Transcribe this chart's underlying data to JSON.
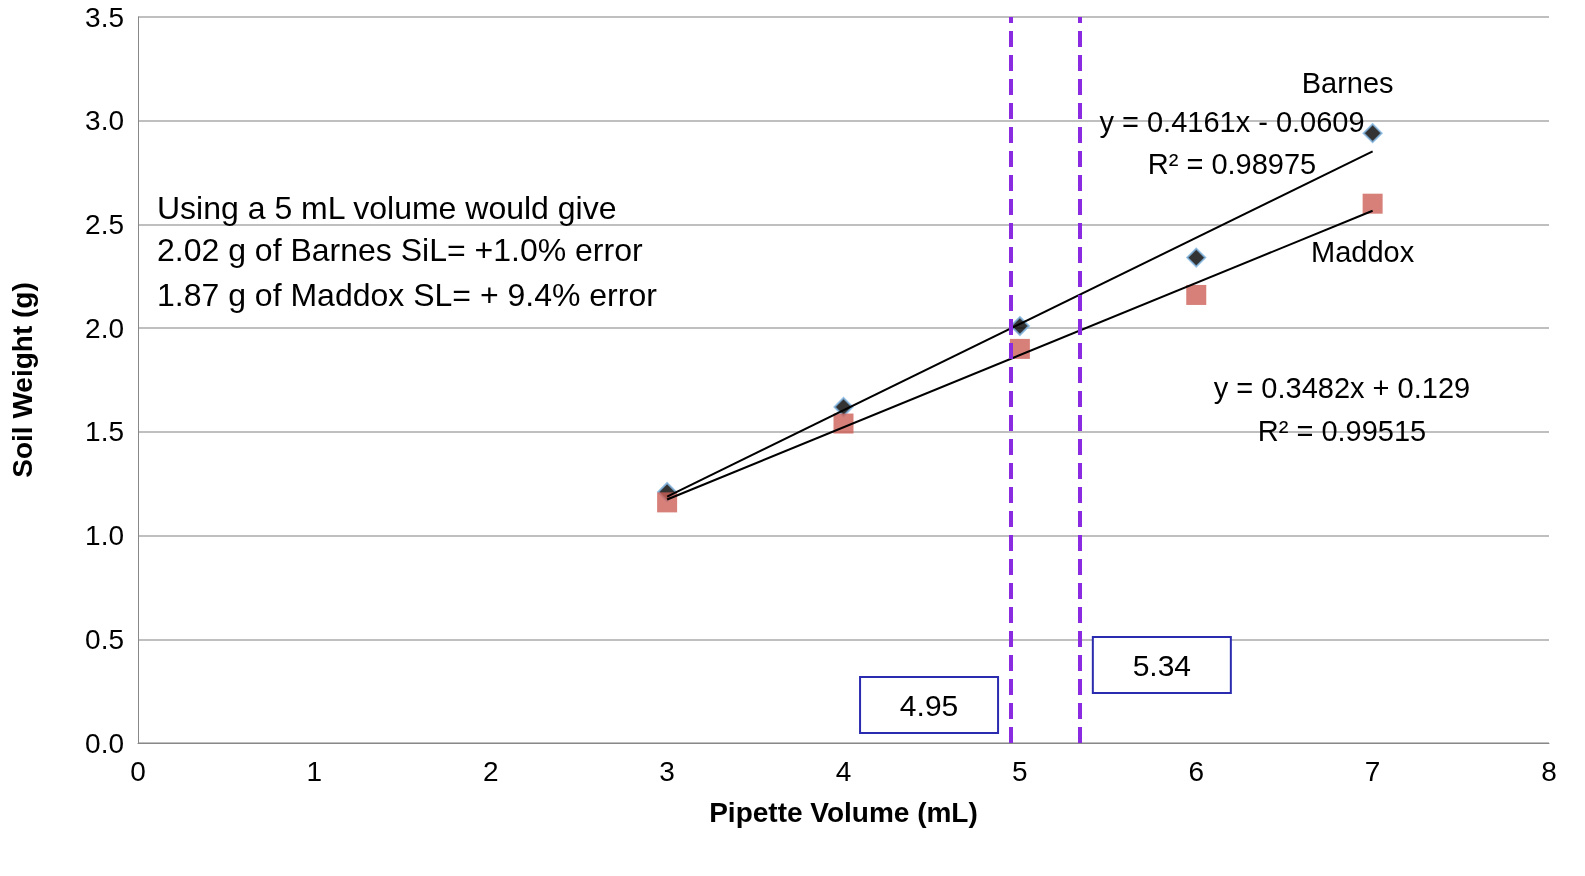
{
  "chart_data": {
    "type": "scatter",
    "xlabel": "Pipette Volume (mL)",
    "ylabel": "Soil Weight (g)",
    "xlim": [
      0,
      8
    ],
    "xticks": [
      0,
      1,
      2,
      3,
      4,
      5,
      6,
      7,
      8
    ],
    "ylim": [
      0,
      3.5
    ],
    "yticks": [
      {
        "value": 0,
        "label": "0.0"
      },
      {
        "value": 0.5,
        "label": "0.5"
      },
      {
        "value": 1,
        "label": "1.0"
      },
      {
        "value": 1.5,
        "label": "1.5"
      },
      {
        "value": 2,
        "label": "2.0"
      },
      {
        "value": 2.5,
        "label": "2.5"
      },
      {
        "value": 3,
        "label": "3.0"
      },
      {
        "value": 3.5,
        "label": "3.5"
      }
    ],
    "grid": "y",
    "legend": false,
    "series": [
      {
        "name": "Barnes",
        "marker": "diamond",
        "color": "#000000",
        "x": [
          3,
          4,
          5,
          6,
          7
        ],
        "values": [
          1.21,
          1.62,
          2.01,
          2.34,
          2.94
        ]
      },
      {
        "name": "Maddox",
        "marker": "square",
        "color": "#cd6059",
        "x": [
          3,
          4,
          5,
          6,
          7
        ],
        "values": [
          1.16,
          1.54,
          1.9,
          2.16,
          2.6
        ]
      },
      {
        "type": "line",
        "marker": "none",
        "color": "#000000",
        "x": [
          3,
          7
        ],
        "values": [
          1.188,
          2.852
        ]
      },
      {
        "type": "line",
        "marker": "none",
        "color": "#000000",
        "x": [
          3,
          7
        ],
        "values": [
          1.174,
          2.566
        ]
      }
    ],
    "ref_lines": [
      {
        "axis": "x",
        "value": 4.95,
        "label": "4.95",
        "color": "#8a2be2",
        "line_style": "dashed"
      },
      {
        "axis": "x",
        "value": 5.34,
        "label": "5.34",
        "color": "#8a2be2",
        "line_style": "dashed"
      }
    ],
    "annotations": [
      "y = 0.4161x - 0.0609",
      "R² = 0.98975",
      "y = 0.3482x + 0.129",
      "R² = 0.99515",
      "Using a 5 mL volume would give",
      "2.02 g of Barnes SiL= +1.0% error",
      "1.87 g of Maddox SL= + 9.4% error"
    ]
  }
}
